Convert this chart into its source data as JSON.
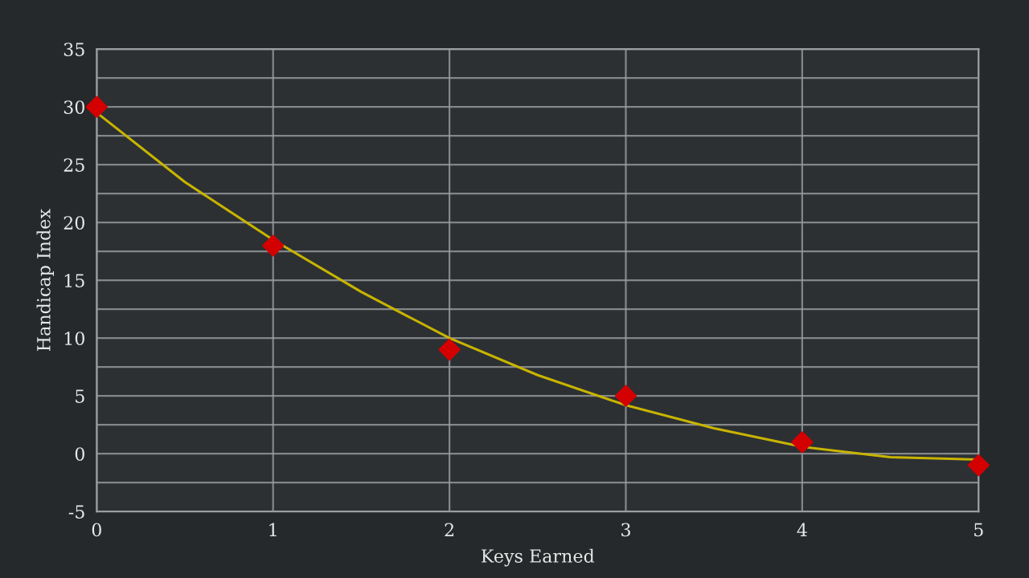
{
  "chart_data": {
    "type": "scatter",
    "xlabel": "Keys Earned",
    "ylabel": "Handicap Index",
    "x": [
      0,
      1,
      2,
      3,
      4,
      5
    ],
    "series": [
      {
        "color": "#d40000",
        "marker": "diamond",
        "values": [
          30,
          18,
          9,
          5,
          1,
          -1
        ]
      },
      {
        "type": "line",
        "color": "#c8b400",
        "marker": "none",
        "line_style": "solid",
        "x": [
          0,
          0.5,
          1,
          1.5,
          2,
          2.5,
          3,
          3.5,
          4,
          4.5,
          5
        ],
        "values": [
          29.5,
          23.5,
          18.5,
          14,
          10,
          6.8,
          4.2,
          2.2,
          0.6,
          -0.3,
          -0.5
        ]
      }
    ],
    "xlim": [
      0,
      5
    ],
    "xticks": [
      0,
      1,
      2,
      3,
      4,
      5
    ],
    "ylim": [
      -5,
      35
    ],
    "yticks": [
      -5,
      {
        "value": -2.5,
        "label": null
      },
      0,
      {
        "value": 2.5,
        "label": null
      },
      5,
      {
        "value": 7.5,
        "label": null
      },
      10,
      {
        "value": 12.5,
        "label": null
      },
      15,
      {
        "value": 17.5,
        "label": null
      },
      20,
      {
        "value": 22.5,
        "label": null
      },
      25,
      {
        "value": 27.5,
        "label": null
      },
      30,
      {
        "value": 32.5,
        "label": null
      },
      35
    ],
    "grid": true,
    "legend": false
  }
}
